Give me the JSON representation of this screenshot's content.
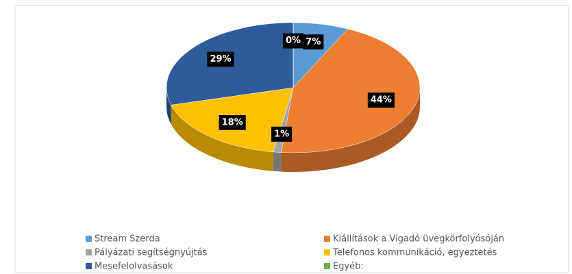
{
  "chart_data": {
    "type": "pie",
    "categories": [
      "Stream Szerda",
      "Kiállítások a Vigadó üvegkörfolyósóján",
      "Pályázati segítségnyújtás",
      "Telefonos kommunikáció, egyeztetés",
      "Mesefelolvasások",
      "Egyéb:"
    ],
    "values": [
      7,
      44,
      1,
      18,
      29,
      0
    ],
    "value_labels": [
      "7%",
      "44%",
      "1%",
      "18%",
      "29%",
      "0%"
    ],
    "colors": [
      "#5b9bd5",
      "#ed7d31",
      "#a5a5a5",
      "#ffc000",
      "#2e5c9a",
      "#70ad47"
    ],
    "legend": "bottom"
  }
}
